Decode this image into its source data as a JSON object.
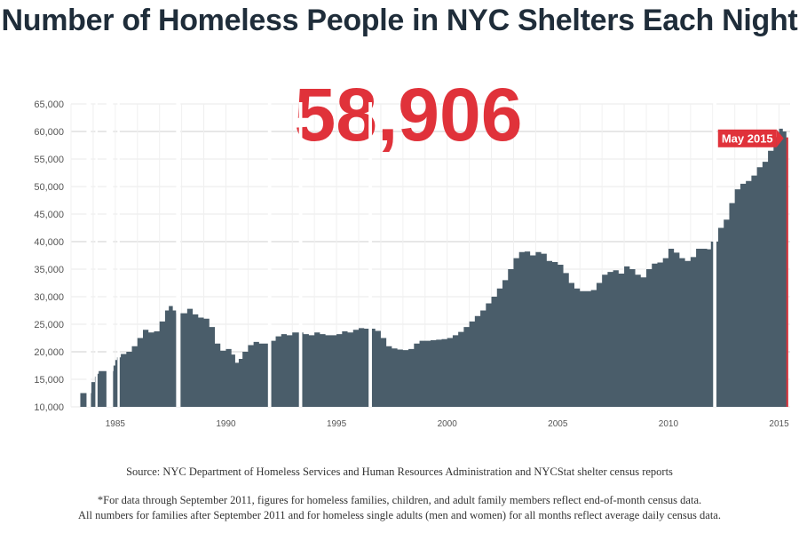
{
  "title": "Number of Homeless People in NYC Shelters Each Night",
  "big_number": "58,906",
  "callout": "May 2015",
  "source": "Source: NYC Department of Homeless Services and Human Resources Administration and NYCStat shelter census reports",
  "footnote_1": "*For data through September 2011, figures for homeless families, children, and adult family members reflect end-of-month census data.",
  "footnote_2": "All numbers for families after September 2011 and for homeless single adults (men and women) for all months reflect average daily census data.",
  "colors": {
    "bars": "#4a5d6a",
    "accent": "#e0323a",
    "title": "#1f2d3a"
  },
  "chart_data": {
    "type": "bar",
    "xlabel": "",
    "ylabel": "",
    "xlim": [
      1983,
      2015.5
    ],
    "ylim": [
      10000,
      65000
    ],
    "grid": true,
    "x_ticks": [
      "1985",
      "1990",
      "1995",
      "2000",
      "2005",
      "2010",
      "2015"
    ],
    "y_ticks": [
      "10,000",
      "15,000",
      "20,000",
      "25,000",
      "30,000",
      "35,000",
      "40,000",
      "45,000",
      "50,000",
      "55,000",
      "60,000",
      "65,000"
    ],
    "gaps": [
      [
        1983.7,
        1983.9
      ],
      [
        1984.1,
        1984.2
      ],
      [
        1984.6,
        1984.9
      ],
      [
        1985.1,
        1985.2
      ],
      [
        1987.75,
        1987.95
      ],
      [
        1991.9,
        1992.05
      ],
      [
        1993.3,
        1993.45
      ],
      [
        1996.45,
        1996.6
      ],
      [
        2012.02,
        2012.17
      ]
    ],
    "series": [
      {
        "points": [
          [
            1983.42,
            12500
          ],
          [
            1983.92,
            14500
          ],
          [
            1984.08,
            15500
          ],
          [
            1984.17,
            16000
          ],
          [
            1984.25,
            16500
          ],
          [
            1984.92,
            17500
          ],
          [
            1985.0,
            18500
          ],
          [
            1985.08,
            19000
          ],
          [
            1985.25,
            19600
          ],
          [
            1985.5,
            20000
          ],
          [
            1985.75,
            21000
          ],
          [
            1986.0,
            22500
          ],
          [
            1986.25,
            24000
          ],
          [
            1986.5,
            23500
          ],
          [
            1986.75,
            23700
          ],
          [
            1987.0,
            25500
          ],
          [
            1987.25,
            27500
          ],
          [
            1987.42,
            28300
          ],
          [
            1987.6,
            27500
          ],
          [
            1987.75,
            27000
          ],
          [
            1988.0,
            27000
          ],
          [
            1988.25,
            27800
          ],
          [
            1988.5,
            26800
          ],
          [
            1988.75,
            26200
          ],
          [
            1989.0,
            26000
          ],
          [
            1989.25,
            24500
          ],
          [
            1989.5,
            21500
          ],
          [
            1989.75,
            20200
          ],
          [
            1990.0,
            20500
          ],
          [
            1990.25,
            19500
          ],
          [
            1990.42,
            18000
          ],
          [
            1990.58,
            18700
          ],
          [
            1990.75,
            20000
          ],
          [
            1991.0,
            21200
          ],
          [
            1991.25,
            21800
          ],
          [
            1991.5,
            21500
          ],
          [
            1991.75,
            21500
          ],
          [
            1992.0,
            22000
          ],
          [
            1992.25,
            22800
          ],
          [
            1992.5,
            23200
          ],
          [
            1992.75,
            23000
          ],
          [
            1993.0,
            23500
          ],
          [
            1993.25,
            23500
          ],
          [
            1993.5,
            23200
          ],
          [
            1993.75,
            23000
          ],
          [
            1994.0,
            23500
          ],
          [
            1994.25,
            23200
          ],
          [
            1994.5,
            23000
          ],
          [
            1994.75,
            23000
          ],
          [
            1995.0,
            23200
          ],
          [
            1995.25,
            23700
          ],
          [
            1995.5,
            23500
          ],
          [
            1995.75,
            24000
          ],
          [
            1996.0,
            24300
          ],
          [
            1996.25,
            24200
          ],
          [
            1996.5,
            24200
          ],
          [
            1996.75,
            23800
          ],
          [
            1997.0,
            22500
          ],
          [
            1997.25,
            21000
          ],
          [
            1997.5,
            20600
          ],
          [
            1997.75,
            20400
          ],
          [
            1998.0,
            20300
          ],
          [
            1998.25,
            20500
          ],
          [
            1998.5,
            21500
          ],
          [
            1998.75,
            22000
          ],
          [
            1999.0,
            22000
          ],
          [
            1999.25,
            22100
          ],
          [
            1999.5,
            22200
          ],
          [
            1999.75,
            22300
          ],
          [
            2000.0,
            22500
          ],
          [
            2000.25,
            23000
          ],
          [
            2000.5,
            23600
          ],
          [
            2000.75,
            24500
          ],
          [
            2001.0,
            25500
          ],
          [
            2001.25,
            26500
          ],
          [
            2001.5,
            27500
          ],
          [
            2001.75,
            28800
          ],
          [
            2002.0,
            30000
          ],
          [
            2002.25,
            31500
          ],
          [
            2002.5,
            33000
          ],
          [
            2002.75,
            35000
          ],
          [
            2003.0,
            37000
          ],
          [
            2003.25,
            38100
          ],
          [
            2003.5,
            38200
          ],
          [
            2003.75,
            37500
          ],
          [
            2004.0,
            38100
          ],
          [
            2004.25,
            37800
          ],
          [
            2004.5,
            36500
          ],
          [
            2004.75,
            36300
          ],
          [
            2005.0,
            35800
          ],
          [
            2005.25,
            34300
          ],
          [
            2005.5,
            32500
          ],
          [
            2005.75,
            31500
          ],
          [
            2006.0,
            31000
          ],
          [
            2006.25,
            31000
          ],
          [
            2006.5,
            31200
          ],
          [
            2006.75,
            32500
          ],
          [
            2007.0,
            34000
          ],
          [
            2007.25,
            34500
          ],
          [
            2007.5,
            34800
          ],
          [
            2007.75,
            34200
          ],
          [
            2008.0,
            35500
          ],
          [
            2008.25,
            35000
          ],
          [
            2008.5,
            34000
          ],
          [
            2008.75,
            33500
          ],
          [
            2009.0,
            35000
          ],
          [
            2009.25,
            36000
          ],
          [
            2009.5,
            36200
          ],
          [
            2009.75,
            37000
          ],
          [
            2010.0,
            38700
          ],
          [
            2010.25,
            38000
          ],
          [
            2010.5,
            37000
          ],
          [
            2010.75,
            36500
          ],
          [
            2011.0,
            37200
          ],
          [
            2011.25,
            38700
          ],
          [
            2011.5,
            38700
          ],
          [
            2011.75,
            38600
          ],
          [
            2011.92,
            40000
          ],
          [
            2012.25,
            42500
          ],
          [
            2012.5,
            44000
          ],
          [
            2012.75,
            47000
          ],
          [
            2013.0,
            49500
          ],
          [
            2013.25,
            50500
          ],
          [
            2013.5,
            51000
          ],
          [
            2013.75,
            52000
          ],
          [
            2014.0,
            53500
          ],
          [
            2014.25,
            54500
          ],
          [
            2014.5,
            56500
          ],
          [
            2014.75,
            59000
          ],
          [
            2015.0,
            60500
          ],
          [
            2015.17,
            60000
          ],
          [
            2015.33,
            58906
          ]
        ]
      }
    ]
  }
}
